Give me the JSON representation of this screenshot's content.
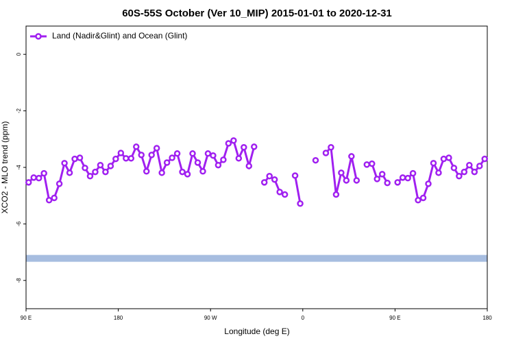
{
  "chart_data": {
    "type": "line",
    "title": "60S-55S October (Ver 10_MIP)   2015-01-01 to 2020-12-31",
    "xlabel": "Longitude (deg E)",
    "ylabel": "XCO2 - MLO trend (ppm)",
    "xlim": [
      90,
      540
    ],
    "xticks": [
      {
        "value": 90,
        "label": "90 E"
      },
      180,
      {
        "value": 270,
        "label": "90 W"
      },
      {
        "value": 360,
        "label": "0"
      },
      {
        "value": 450,
        "label": "90 E"
      },
      {
        "value": 540,
        "label": "180"
      }
    ],
    "ylim": [
      -9,
      1
    ],
    "yticks": [
      0,
      -2,
      -4,
      -6,
      -8
    ],
    "legend": "upper left",
    "band": {
      "y": -7.22,
      "color": "#a7bde0"
    },
    "x": [
      92.5,
      97.5,
      102.5,
      107.5,
      112.5,
      117.5,
      122.5,
      127.5,
      132.5,
      137.5,
      142.5,
      147.5,
      152.5,
      157.5,
      162.5,
      167.5,
      172.5,
      177.5,
      182.5,
      187.5,
      192.5,
      197.5,
      202.5,
      207.5,
      212.5,
      217.5,
      222.5,
      227.5,
      232.5,
      237.5,
      242.5,
      247.5,
      252.5,
      257.5,
      262.5,
      267.5,
      272.5,
      277.5,
      282.5,
      287.5,
      292.5,
      297.5,
      302.5,
      307.5,
      312.5,
      317.5,
      322.5,
      327.5,
      332.5,
      337.5,
      342.5,
      347.5,
      352.5,
      357.5,
      362.5,
      367.5,
      372.5,
      377.5,
      382.5,
      387.5,
      392.5,
      397.5,
      402.5,
      407.5,
      412.5,
      417.5,
      422.5,
      427.5,
      432.5,
      437.5,
      442.5,
      447.5,
      452.5,
      457.5,
      462.5,
      467.5,
      472.5,
      477.5,
      482.5,
      487.5,
      492.5,
      497.5,
      502.5,
      507.5,
      512.5,
      517.5,
      522.5,
      527.5,
      532.5,
      537.5
    ],
    "series": [
      {
        "name": "Land (Nadir&Glint) and Ocean (Glint)",
        "color": "#a020f0",
        "values": [
          -4.53,
          -4.36,
          -4.38,
          -4.21,
          -5.16,
          -5.08,
          -4.58,
          -3.85,
          -4.19,
          -3.7,
          -3.66,
          -4.02,
          -4.31,
          -4.16,
          -3.92,
          -4.16,
          -3.95,
          -3.7,
          -3.49,
          -3.68,
          -3.68,
          -3.27,
          -3.56,
          -4.14,
          -3.56,
          -3.32,
          -4.19,
          -3.83,
          -3.66,
          -3.51,
          -4.16,
          -4.24,
          -3.51,
          -3.83,
          -4.14,
          -3.51,
          -3.58,
          -3.92,
          -3.73,
          -3.15,
          -3.05,
          -3.68,
          -3.29,
          -3.95,
          -3.27,
          null,
          -4.53,
          -4.31,
          -4.43,
          -4.87,
          -4.96,
          null,
          -4.29,
          -5.28,
          null,
          null,
          -3.75,
          null,
          -3.49,
          -3.29,
          -4.96,
          -4.19,
          -4.46,
          -3.61,
          -4.46,
          null,
          -3.9,
          -3.87,
          -4.41,
          -4.24,
          -4.55,
          null,
          -4.53,
          -4.36,
          -4.38,
          -4.21,
          -5.16,
          -5.08,
          -4.58,
          -3.85,
          -4.19,
          -3.7,
          -3.66,
          -4.02,
          -4.31,
          -4.16,
          -3.92,
          -4.16,
          -3.95,
          -3.7
        ]
      }
    ]
  }
}
